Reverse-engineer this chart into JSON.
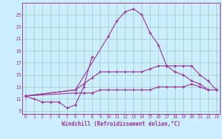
{
  "bg_color": "#cceeff",
  "grid_color": "#99ccbb",
  "line_color": "#993399",
  "ylim": [
    8.5,
    27.0
  ],
  "xlim": [
    -0.4,
    23.4
  ],
  "yticks": [
    9,
    11,
    13,
    15,
    17,
    19,
    21,
    23,
    25
  ],
  "xticks": [
    0,
    1,
    2,
    3,
    4,
    5,
    6,
    7,
    8,
    9,
    10,
    11,
    12,
    13,
    14,
    15,
    16,
    17,
    18,
    19,
    20,
    21,
    22,
    23
  ],
  "xlabel": "Windchill (Refroidissement éolien,°C)",
  "curve_big_x": [
    0,
    6,
    10,
    11,
    12,
    13,
    14,
    15,
    16,
    17,
    18,
    19,
    20,
    21,
    22,
    23
  ],
  "curve_big_y": [
    11.5,
    12.5,
    21.5,
    24.0,
    25.5,
    26.0,
    25.0,
    22.0,
    20.0,
    16.5,
    15.5,
    15.0,
    14.0,
    13.5,
    12.5,
    12.5
  ],
  "curve_low_x": [
    0,
    1,
    2,
    3,
    4,
    5,
    6,
    7,
    8
  ],
  "curve_low_y": [
    11.5,
    11.0,
    10.5,
    10.5,
    10.5,
    9.5,
    10.0,
    13.0,
    18.0
  ],
  "curve_upper_x": [
    0,
    6,
    7,
    8,
    9,
    10,
    11,
    12,
    13,
    14,
    15,
    16,
    17,
    18,
    19,
    20,
    21,
    22,
    23
  ],
  "curve_upper_y": [
    11.5,
    12.5,
    13.5,
    14.5,
    15.5,
    15.5,
    15.5,
    15.5,
    15.5,
    15.5,
    16.0,
    16.5,
    16.5,
    16.5,
    16.5,
    16.5,
    15.0,
    14.0,
    12.5
  ],
  "curve_lower_x": [
    0,
    6,
    7,
    8,
    9,
    10,
    11,
    12,
    13,
    14,
    15,
    16,
    17,
    18,
    19,
    20,
    21,
    22,
    23
  ],
  "curve_lower_y": [
    11.5,
    12.0,
    12.0,
    12.0,
    12.5,
    12.5,
    12.5,
    12.5,
    12.5,
    12.5,
    12.5,
    13.0,
    13.0,
    13.0,
    13.0,
    13.5,
    13.0,
    12.5,
    12.5
  ]
}
